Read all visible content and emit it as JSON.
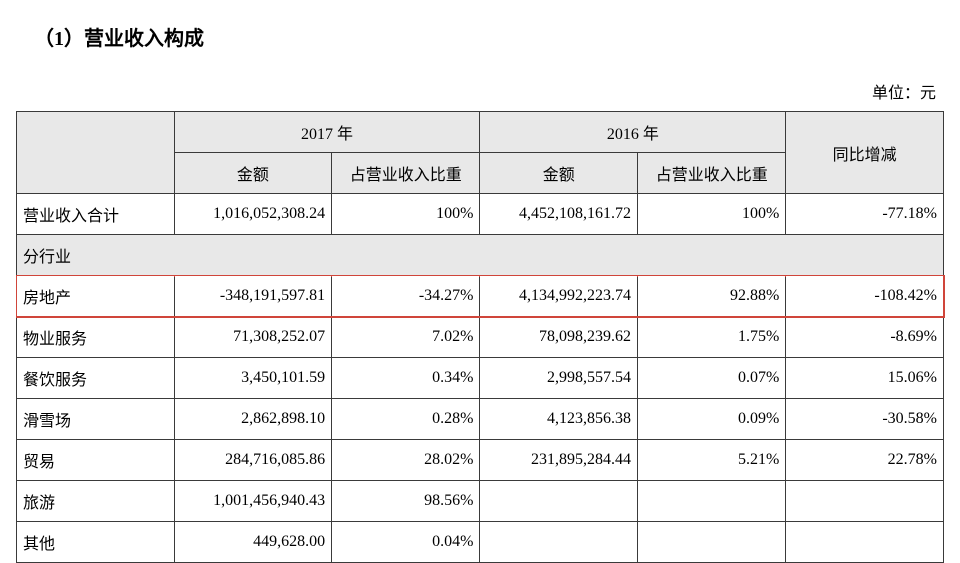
{
  "title": "（1）营业收入构成",
  "unit_label": "单位：元",
  "table": {
    "header": {
      "blank": "",
      "year_2017": "2017 年",
      "year_2016": "2016 年",
      "yoy": "同比增减",
      "amount": "金额",
      "pct": "占营业收入比重"
    },
    "total_row": {
      "label": "营业收入合计",
      "amt_2017": "1,016,052,308.24",
      "pct_2017": "100%",
      "amt_2016": "4,452,108,161.72",
      "pct_2016": "100%",
      "yoy": "-77.18%"
    },
    "section_label": "分行业",
    "rows": [
      {
        "label": "房地产",
        "amt_2017": "-348,191,597.81",
        "pct_2017": "-34.27%",
        "amt_2016": "4,134,992,223.74",
        "pct_2016": "92.88%",
        "yoy": "-108.42%",
        "highlight": true
      },
      {
        "label": "物业服务",
        "amt_2017": "71,308,252.07",
        "pct_2017": "7.02%",
        "amt_2016": "78,098,239.62",
        "pct_2016": "1.75%",
        "yoy": "-8.69%"
      },
      {
        "label": "餐饮服务",
        "amt_2017": "3,450,101.59",
        "pct_2017": "0.34%",
        "amt_2016": "2,998,557.54",
        "pct_2016": "0.07%",
        "yoy": "15.06%"
      },
      {
        "label": "滑雪场",
        "amt_2017": "2,862,898.10",
        "pct_2017": "0.28%",
        "amt_2016": "4,123,856.38",
        "pct_2016": "0.09%",
        "yoy": "-30.58%"
      },
      {
        "label": "贸易",
        "amt_2017": "284,716,085.86",
        "pct_2017": "28.02%",
        "amt_2016": "231,895,284.44",
        "pct_2016": "5.21%",
        "yoy": "22.78%"
      },
      {
        "label": "旅游",
        "amt_2017": "1,001,456,940.43",
        "pct_2017": "98.56%",
        "amt_2016": "",
        "pct_2016": "",
        "yoy": ""
      },
      {
        "label": "其他",
        "amt_2017": "449,628.00",
        "pct_2017": "0.04%",
        "amt_2016": "",
        "pct_2016": "",
        "yoy": ""
      }
    ]
  },
  "style": {
    "highlight_border": "#d0453a",
    "header_bg": "#e8e8e8",
    "border_color": "#3a3a3a",
    "text_color": "#000000",
    "font_size_body": 16,
    "font_size_title": 20
  }
}
